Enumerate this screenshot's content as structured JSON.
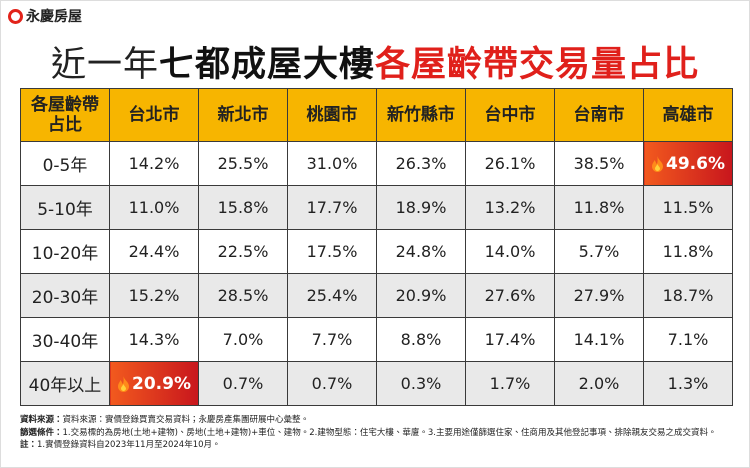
{
  "header": {
    "logo": "永慶房屋",
    "title": [
      "近一年",
      "七都成屋大樓",
      "各屋齡帶交易量占比"
    ]
  },
  "table": {
    "corner": "各屋齡帶\n占比",
    "columns": [
      "台北市",
      "新北市",
      "桃園市",
      "新竹縣市",
      "台中市",
      "台南市",
      "高雄市"
    ],
    "rows": [
      {
        "label": "0-5年",
        "cells": [
          "14.2%",
          "25.5%",
          "31.0%",
          "26.3%",
          "26.1%",
          "38.5%",
          "49.6%"
        ]
      },
      {
        "label": "5-10年",
        "cells": [
          "11.0%",
          "15.8%",
          "17.7%",
          "18.9%",
          "13.2%",
          "11.8%",
          "11.5%"
        ]
      },
      {
        "label": "10-20年",
        "cells": [
          "24.4%",
          "22.5%",
          "17.5%",
          "24.8%",
          "14.0%",
          "5.7%",
          "11.8%"
        ]
      },
      {
        "label": "20-30年",
        "cells": [
          "15.2%",
          "28.5%",
          "25.4%",
          "20.9%",
          "27.6%",
          "27.9%",
          "18.7%"
        ]
      },
      {
        "label": "30-40年",
        "cells": [
          "14.3%",
          "7.0%",
          "7.7%",
          "8.8%",
          "17.4%",
          "14.1%",
          "7.1%"
        ]
      },
      {
        "label": "40年以上",
        "cells": [
          "20.9%",
          "0.7%",
          "0.7%",
          "0.3%",
          "1.7%",
          "2.0%",
          "1.3%"
        ]
      }
    ]
  },
  "notes": [
    {
      "label": "資料來源：",
      "text": "資料來源：實價登錄買賣交易資料；永慶房產集團研展中心彙整。"
    },
    {
      "label": "篩選條件：",
      "text": "1.交易標的為房地(土地+建物)、房地(土地+建物)+車位、建物。2.建物型態：住宅大樓、華廈。3.主要用途僅篩選住家、住商用及其他登記事項、排除親友交易之成交資料。"
    },
    {
      "label": "註：",
      "text": "1.實價登錄資料自2023年11月至2024年10月。"
    }
  ]
}
